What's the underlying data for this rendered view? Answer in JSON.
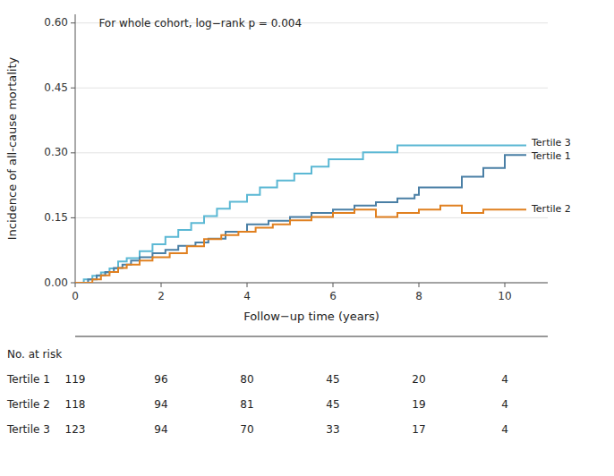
{
  "chart_data": {
    "type": "step",
    "title": "For whole cohort, log−rank p = 0.004",
    "xlabel": "Follow−up time (years)",
    "ylabel": "Incidence of all-cause mortality",
    "xlim": [
      0,
      11
    ],
    "ylim": [
      0.0,
      0.62
    ],
    "xticks": [
      0,
      2,
      4,
      6,
      8,
      10
    ],
    "yticks": [
      {
        "value": 0.0,
        "label": "0.00"
      },
      0.15,
      {
        "value": 0.3,
        "label": "0.30"
      },
      0.45,
      {
        "value": 0.6,
        "label": "0.60"
      }
    ],
    "grid": "y",
    "series": [
      {
        "name": "Tertile 3",
        "color": "#5bb8d4",
        "x": [
          0,
          0.2,
          0.4,
          0.6,
          0.8,
          1.0,
          1.2,
          1.5,
          1.8,
          2.1,
          2.4,
          2.7,
          3.0,
          3.3,
          3.6,
          4.0,
          4.3,
          4.7,
          5.1,
          5.5,
          5.9,
          6.3,
          6.7,
          7.1,
          7.5,
          7.9,
          8.0,
          10.0,
          10.5
        ],
        "values": [
          0,
          0.008,
          0.016,
          0.024,
          0.033,
          0.049,
          0.057,
          0.073,
          0.089,
          0.106,
          0.122,
          0.138,
          0.154,
          0.171,
          0.187,
          0.203,
          0.22,
          0.236,
          0.252,
          0.268,
          0.285,
          0.285,
          0.301,
          0.301,
          0.317,
          0.317,
          0.317,
          0.317,
          0.317
        ]
      },
      {
        "name": "Tertile 1",
        "color": "#4a7fa5",
        "x": [
          0,
          0.3,
          0.5,
          0.7,
          0.9,
          1.1,
          1.3,
          1.5,
          1.8,
          2.1,
          2.4,
          2.8,
          3.1,
          3.5,
          4.0,
          4.5,
          5.0,
          5.5,
          6.0,
          6.5,
          7.0,
          7.5,
          7.9,
          8.0,
          9.0,
          9.5,
          10.0,
          10.5
        ],
        "values": [
          0,
          0.008,
          0.017,
          0.025,
          0.034,
          0.042,
          0.051,
          0.059,
          0.068,
          0.076,
          0.085,
          0.093,
          0.102,
          0.118,
          0.135,
          0.143,
          0.152,
          0.161,
          0.169,
          0.178,
          0.186,
          0.195,
          0.203,
          0.22,
          0.245,
          0.265,
          0.295,
          0.295
        ]
      },
      {
        "name": "Tertile 2",
        "color": "#e08020",
        "x": [
          0,
          0.4,
          0.6,
          0.8,
          1.0,
          1.2,
          1.5,
          1.8,
          2.2,
          2.6,
          3.0,
          3.4,
          3.8,
          4.2,
          4.6,
          5.0,
          5.5,
          6.0,
          6.5,
          7.0,
          7.5,
          8.0,
          8.5,
          9.0,
          9.5,
          10.0,
          10.5
        ],
        "values": [
          0,
          0.008,
          0.017,
          0.025,
          0.034,
          0.042,
          0.051,
          0.059,
          0.068,
          0.084,
          0.101,
          0.11,
          0.118,
          0.127,
          0.135,
          0.144,
          0.152,
          0.161,
          0.169,
          0.152,
          0.161,
          0.169,
          0.178,
          0.161,
          0.169,
          0.169,
          0.169
        ]
      }
    ],
    "at_risk": {
      "label": "No. at risk",
      "times": [
        0,
        2,
        4,
        6,
        8,
        10
      ],
      "rows": [
        {
          "name": "Tertile 1",
          "values": [
            119,
            96,
            80,
            45,
            20,
            4
          ]
        },
        {
          "name": "Tertile 2",
          "values": [
            118,
            94,
            81,
            45,
            19,
            4
          ]
        },
        {
          "name": "Tertile 3",
          "values": [
            123,
            94,
            70,
            33,
            17,
            4
          ]
        }
      ]
    }
  }
}
